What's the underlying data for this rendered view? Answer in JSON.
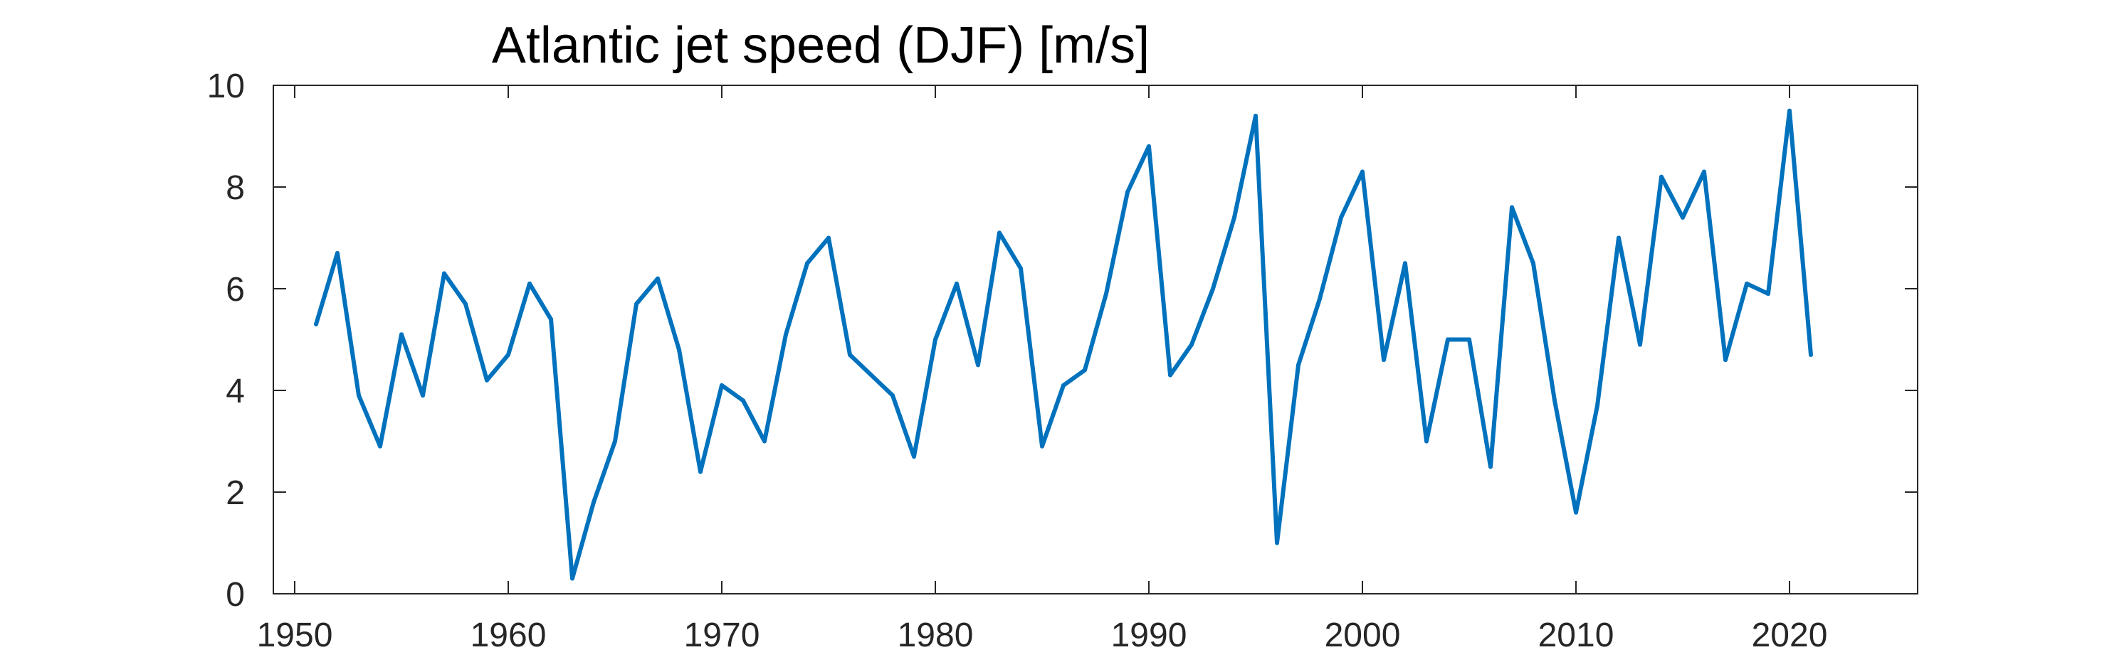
{
  "chart_data": {
    "type": "line",
    "title": "Atlantic jet speed (DJF) [m/s]",
    "xlabel": "",
    "ylabel": "",
    "xlim": [
      1949,
      2026
    ],
    "ylim": [
      0,
      10
    ],
    "xticks": [
      1950,
      1960,
      1970,
      1980,
      1990,
      2000,
      2010,
      2020
    ],
    "yticks": [
      0,
      2,
      4,
      6,
      8,
      10
    ],
    "grid": false,
    "legend": "none",
    "line_color": "#0072BD",
    "series": [
      {
        "x": [
          1951,
          1952,
          1953,
          1954,
          1955,
          1956,
          1957,
          1958,
          1959,
          1960,
          1961,
          1962,
          1963,
          1964,
          1965,
          1966,
          1967,
          1968,
          1969,
          1970,
          1971,
          1972,
          1973,
          1974,
          1975,
          1976,
          1977,
          1978,
          1979,
          1980,
          1981,
          1982,
          1983,
          1984,
          1985,
          1986,
          1987,
          1988,
          1989,
          1990,
          1991,
          1992,
          1993,
          1994,
          1995,
          1996,
          1997,
          1998,
          1999,
          2000,
          2001,
          2002,
          2003,
          2004,
          2005,
          2006,
          2007,
          2008,
          2009,
          2010,
          2011,
          2012,
          2013,
          2014,
          2015,
          2016,
          2017,
          2018,
          2019,
          2020,
          2021
        ],
        "values": [
          5.3,
          6.7,
          3.9,
          2.9,
          5.1,
          3.9,
          6.3,
          5.7,
          4.2,
          4.7,
          6.1,
          5.4,
          0.3,
          1.8,
          3.0,
          5.7,
          6.2,
          4.8,
          2.4,
          4.1,
          3.8,
          3.0,
          5.1,
          6.5,
          7.0,
          4.7,
          4.3,
          3.9,
          2.7,
          5.0,
          6.1,
          4.5,
          7.1,
          6.4,
          2.9,
          4.1,
          4.4,
          5.9,
          7.9,
          8.8,
          4.3,
          4.9,
          6.0,
          7.4,
          9.4,
          1.0,
          4.5,
          5.8,
          7.4,
          8.3,
          4.6,
          6.5,
          3.0,
          5.0,
          5.0,
          2.5,
          7.6,
          6.5,
          3.8,
          1.6,
          3.7,
          7.0,
          4.9,
          8.2,
          7.4,
          8.3,
          4.6,
          6.1,
          5.9,
          9.5,
          4.7
        ]
      }
    ]
  }
}
